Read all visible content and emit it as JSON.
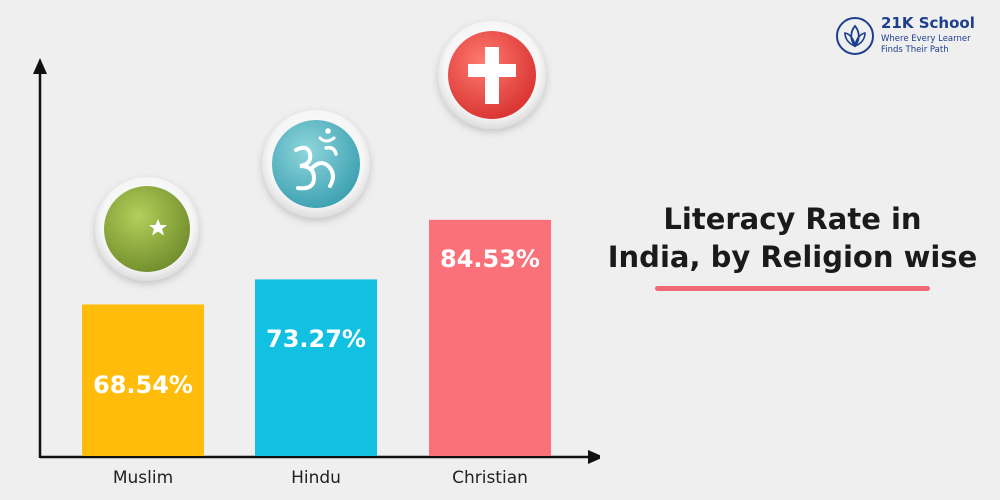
{
  "brand": {
    "name": "21K School",
    "tagline_line1": "Where Every Learner",
    "tagline_line2": "Finds Their Path"
  },
  "chart_data": {
    "type": "bar",
    "title_line1": "Literacy Rate in",
    "title_line2": "India, by Religion wise",
    "categories": [
      "Muslim",
      "Hindu",
      "Christian"
    ],
    "values": [
      68.54,
      73.27,
      84.53
    ],
    "value_labels": [
      "68.54%",
      "73.27%",
      "84.53%"
    ],
    "icons": [
      "crescent-star-icon",
      "om-icon",
      "cross-icon"
    ],
    "colors": [
      "#ffbc0a",
      "#12c0e2",
      "#fb717a"
    ],
    "accent_color": "#f16a73"
  }
}
